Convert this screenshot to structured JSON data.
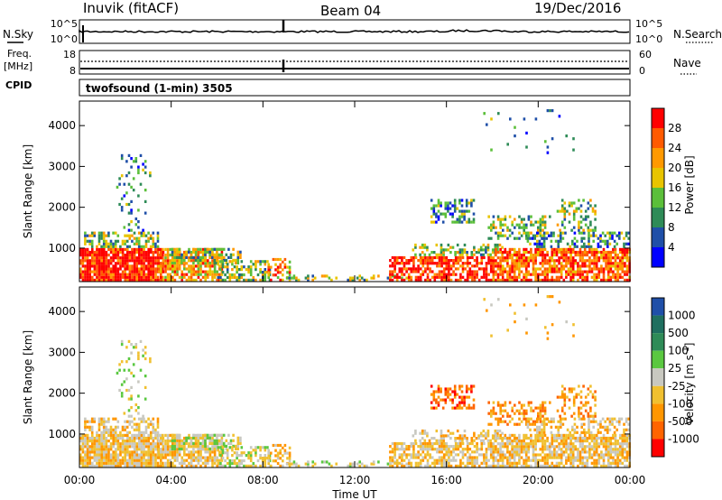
{
  "header": {
    "radar": "Inuvik (fitACF)",
    "beam": "Beam 04",
    "date": "19/Dec/2016"
  },
  "noise_panel": {
    "left_label": "N.Sky",
    "right_label": "N.Search",
    "left_ticks": [
      "10^5",
      "10^0"
    ],
    "right_ticks": [
      "10^5",
      "10^0"
    ]
  },
  "freq_panel": {
    "left_label_1": "Freq.",
    "left_label_2": "[MHz]",
    "right_label": "Nave",
    "left_ticks": [
      "18",
      "8"
    ],
    "right_ticks": [
      "60",
      "0"
    ]
  },
  "cpid": {
    "label": "CPID",
    "program": "twofsound (1-min) 3505"
  },
  "colors": {
    "power": [
      "#0000ff",
      "#1f4fa8",
      "#2e8b57",
      "#5bbf3a",
      "#e8c400",
      "#ff9900",
      "#ff5a00",
      "#ff0000"
    ],
    "velocity": [
      "#ff0000",
      "#ff6400",
      "#ff9600",
      "#f0c030",
      "#c8c8c0",
      "#5ac840",
      "#2e8b57",
      "#1f6f5f",
      "#1f4fa8"
    ]
  },
  "chart_data": [
    {
      "type": "heatmap",
      "quantity": "power",
      "ylabel": "Slant Range [km]",
      "xlabel": "",
      "ylim": [
        180,
        4600
      ],
      "y_ticks": [
        "1000",
        "2000",
        "3000",
        "4000"
      ],
      "x_ticks": [
        "00:00",
        "04:00",
        "08:00",
        "12:00",
        "16:00",
        "20:00",
        "00:00"
      ],
      "xlim_hours": [
        0,
        24
      ],
      "colorbar": {
        "title": "Power [dB]",
        "range": [
          0,
          32
        ],
        "ticks": [
          "4",
          "8",
          "12",
          "16",
          "20",
          "24",
          "28"
        ]
      }
    },
    {
      "type": "heatmap",
      "quantity": "velocity",
      "ylabel": "Slant Range [km]",
      "xlabel": "Time UT",
      "ylim": [
        180,
        4600
      ],
      "y_ticks": [
        "1000",
        "2000",
        "3000",
        "4000"
      ],
      "x_ticks": [
        "00:00",
        "04:00",
        "08:00",
        "12:00",
        "16:00",
        "20:00",
        "00:00"
      ],
      "xlim_hours": [
        0,
        24
      ],
      "colorbar": {
        "title": "Velocity [m s-1]",
        "ticks": [
          "1000",
          "500",
          "100",
          "25",
          "-25",
          "-100",
          "-500",
          "-1000"
        ]
      }
    }
  ]
}
